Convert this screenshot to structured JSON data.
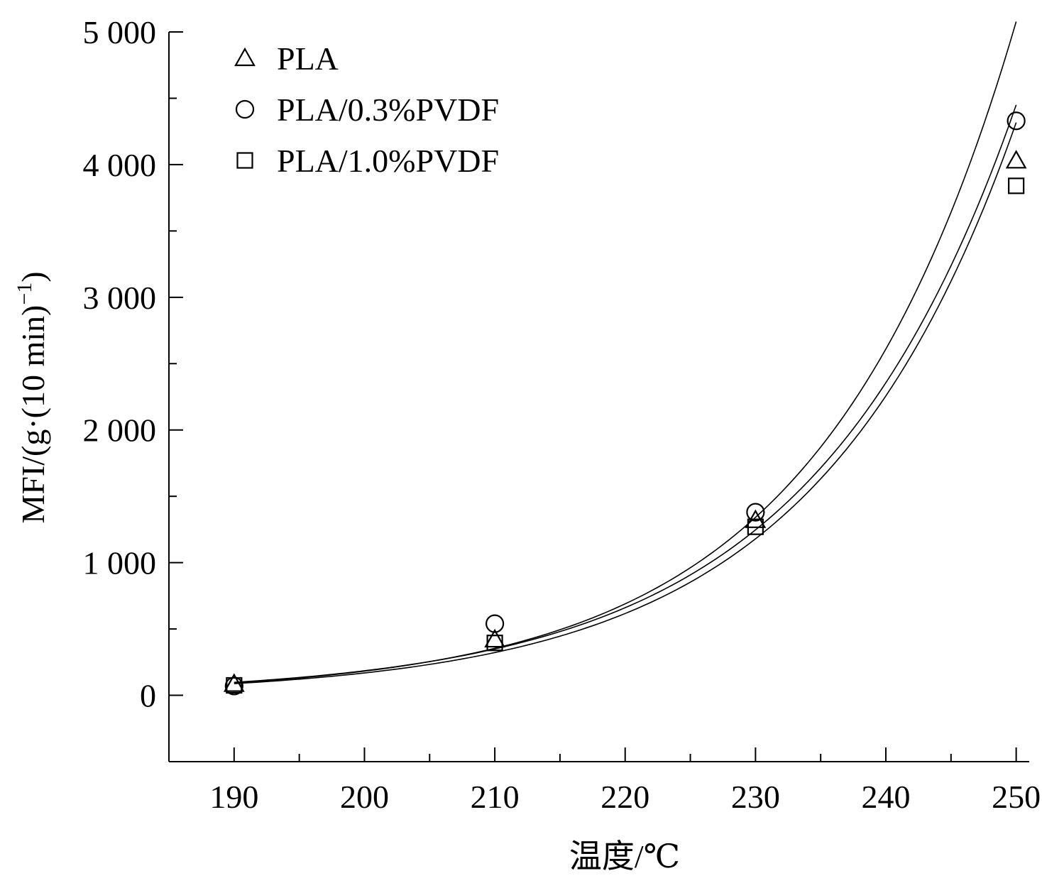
{
  "chart_data": {
    "type": "scatter",
    "xlabel": "温度/℃",
    "ylabel_main": "MFI/(g·(10 min)",
    "ylabel_sup": "−1",
    "ylabel_tail": ")",
    "xlim": [
      185,
      251
    ],
    "ylim": [
      -500,
      5000
    ],
    "x_ticks": [
      190,
      200,
      210,
      220,
      230,
      240,
      250
    ],
    "x_tick_labels": [
      "190",
      "200",
      "210",
      "220",
      "230",
      "240",
      "250"
    ],
    "x_minor_ticks": [
      195,
      205,
      215,
      225,
      235,
      245
    ],
    "y_ticks": [
      0,
      1000,
      2000,
      3000,
      4000,
      5000
    ],
    "y_tick_labels": [
      "0",
      "1 000",
      "2 000",
      "3 000",
      "4 000",
      "5 000"
    ],
    "y_minor_ticks": [
      500,
      1500,
      2500,
      3500,
      4500
    ],
    "legend_position": "top-left",
    "series": [
      {
        "name": "PLA",
        "marker": "triangle",
        "x": [
          190,
          210,
          230,
          250
        ],
        "y": [
          85,
          420,
          1320,
          4030
        ]
      },
      {
        "name": "PLA/0.3%PVDF",
        "marker": "circle",
        "x": [
          190,
          210,
          230,
          250
        ],
        "y": [
          70,
          540,
          1380,
          4330
        ]
      },
      {
        "name": "PLA/1.0%PVDF",
        "marker": "square",
        "x": [
          190,
          210,
          230,
          250
        ],
        "y": [
          75,
          395,
          1270,
          3840
        ]
      }
    ]
  }
}
